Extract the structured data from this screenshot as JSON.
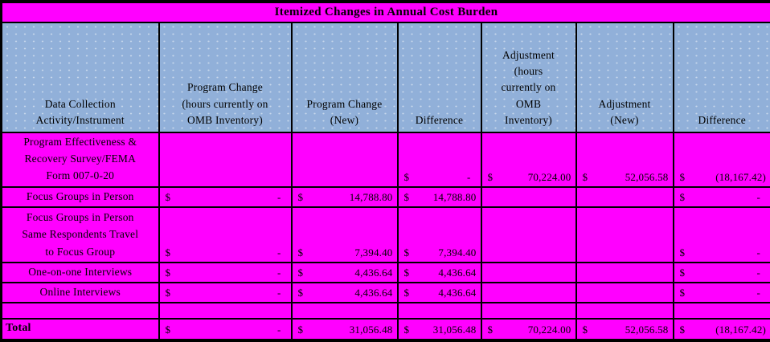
{
  "title": "Itemized Changes in Annual Cost Burden",
  "currency_symbol": "$",
  "colors": {
    "title_background": "#ff00ff",
    "row_background": "#ff00ff",
    "header_background": "#91b0d9",
    "border": "#000000",
    "text": "#000000"
  },
  "columns": [
    {
      "id": "activity",
      "label": "Data Collection\nActivity/Instrument"
    },
    {
      "id": "program-change-current",
      "label": "Program Change\n(hours currently on\nOMB Inventory)"
    },
    {
      "id": "program-change-new",
      "label": "Program Change\n(New)"
    },
    {
      "id": "difference-1",
      "label": "Difference"
    },
    {
      "id": "adjustment-current",
      "label": "Adjustment\n(hours\ncurrently on\nOMB\nInventory)"
    },
    {
      "id": "adjustment-new",
      "label": "Adjustment\n(New)"
    },
    {
      "id": "difference-2",
      "label": "Difference"
    }
  ],
  "rows": [
    {
      "label": "Program Effectiveness &\nRecovery Survey/FEMA\nForm 007-0-20",
      "bold": false,
      "values": [
        "",
        "",
        "-",
        "70,224.00",
        "52,056.58",
        "(18,167.42)"
      ]
    },
    {
      "label": "Focus Groups in Person",
      "bold": false,
      "values": [
        "-",
        "14,788.80",
        "14,788.80",
        "",
        "",
        "-"
      ]
    },
    {
      "label": "Focus Groups in Person\nSame Respondents Travel\nto Focus Group",
      "bold": false,
      "values": [
        "-",
        "7,394.40",
        "7,394.40",
        "",
        "",
        "-"
      ]
    },
    {
      "label": "One-on-one Interviews",
      "bold": false,
      "values": [
        "-",
        "4,436.64",
        "4,436.64",
        "",
        "",
        "-"
      ]
    },
    {
      "label": "Online Interviews",
      "bold": false,
      "values": [
        "-",
        "4,436.64",
        "4,436.64",
        "",
        "",
        "-"
      ]
    },
    {
      "label": "",
      "bold": false,
      "values": [
        "",
        "",
        "",
        "",
        "",
        ""
      ]
    },
    {
      "label": "Total",
      "bold": true,
      "values": [
        "-",
        "31,056.48",
        "31,056.48",
        "70,224.00",
        "52,056.58",
        "(18,167.42)"
      ]
    }
  ]
}
